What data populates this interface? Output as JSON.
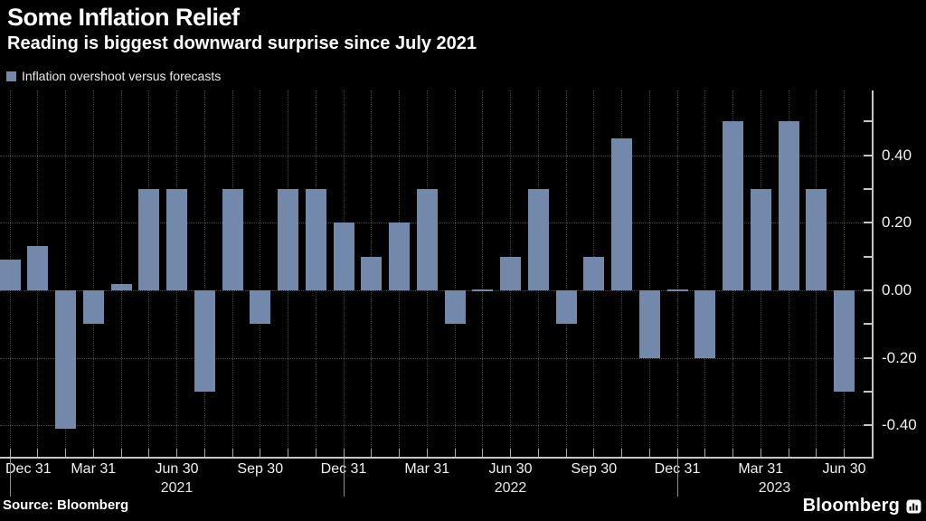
{
  "header": {
    "title": "Some Inflation Relief",
    "subtitle": "Reading is biggest downward surprise since July 2021"
  },
  "legend": {
    "label": "Inflation overshoot versus forecasts",
    "swatch_icon": "series-color-swatch"
  },
  "footer": {
    "source": "Source: Bloomberg",
    "brand": "Bloomberg",
    "brand_icon": "bloomberg-chart-icon"
  },
  "colors": {
    "background": "#000000",
    "bar": "#7289ab",
    "grid": "#464646",
    "axis": "#c6c6c6",
    "text": "#f1f1f1",
    "year_divider": "#8f8f8f"
  },
  "chart_data": {
    "type": "bar",
    "title": "Some Inflation Relief",
    "subtitle": "Reading is biggest downward surprise since July 2021",
    "series_label": "Inflation overshoot versus forecasts",
    "x": [
      "Dec 2020",
      "Jan 2021",
      "Feb 2021",
      "Mar 2021",
      "Apr 2021",
      "May 2021",
      "Jun 2021",
      "Jul 2021",
      "Aug 2021",
      "Sep 2021",
      "Oct 2021",
      "Nov 2021",
      "Dec 2021",
      "Jan 2022",
      "Feb 2022",
      "Mar 2022",
      "Apr 2022",
      "May 2022",
      "Jun 2022",
      "Jul 2022",
      "Aug 2022",
      "Sep 2022",
      "Oct 2022",
      "Nov 2022",
      "Dec 2022",
      "Jan 2023",
      "Feb 2023",
      "Mar 2023",
      "Apr 2023",
      "May 2023",
      "Jun 2023"
    ],
    "values": [
      0.09,
      0.13,
      -0.41,
      -0.1,
      0.02,
      0.3,
      0.3,
      -0.3,
      0.3,
      -0.1,
      0.3,
      0.3,
      0.2,
      0.1,
      0.2,
      0.3,
      -0.1,
      0.0,
      0.1,
      0.3,
      -0.1,
      0.1,
      0.45,
      -0.2,
      0.0,
      -0.2,
      0.5,
      0.3,
      0.5,
      0.3,
      -0.3
    ],
    "ylim": [
      -0.49,
      0.59
    ],
    "grid": true,
    "legend_position": "top-left",
    "axis_side": "right",
    "y_gridlines": [
      0.4,
      0.2,
      0.0,
      -0.2,
      -0.4
    ],
    "y_ticks": [
      0.5,
      0.4,
      0.3,
      0.2,
      0.1,
      0.0,
      -0.1,
      -0.2,
      -0.3,
      -0.4
    ],
    "y_major_labels": [
      {
        "v": 0.4,
        "label": "0.40"
      },
      {
        "v": 0.2,
        "label": "0.20"
      },
      {
        "v": 0.0,
        "label": "0.00"
      },
      {
        "v": -0.2,
        "label": "-0.20"
      },
      {
        "v": -0.4,
        "label": "-0.40"
      }
    ],
    "x_quarter_ticks": [
      {
        "index": 0,
        "label": "Dec 31"
      },
      {
        "index": 3,
        "label": "Mar 31"
      },
      {
        "index": 6,
        "label": "Jun 30"
      },
      {
        "index": 9,
        "label": "Sep 30"
      },
      {
        "index": 12,
        "label": "Dec 31"
      },
      {
        "index": 15,
        "label": "Mar 31"
      },
      {
        "index": 18,
        "label": "Jun 30"
      },
      {
        "index": 21,
        "label": "Sep 30"
      },
      {
        "index": 24,
        "label": "Dec 31"
      },
      {
        "index": 27,
        "label": "Mar 31"
      },
      {
        "index": 30,
        "label": "Jun 30"
      }
    ],
    "year_sections": [
      {
        "label": "2021",
        "from_index": 0,
        "to_index": 12
      },
      {
        "label": "2022",
        "from_index": 12,
        "to_index": 24
      },
      {
        "label": "2023",
        "from_index": 24,
        "to_index": null
      }
    ],
    "year_divider_indices": [
      0,
      12,
      24
    ]
  }
}
